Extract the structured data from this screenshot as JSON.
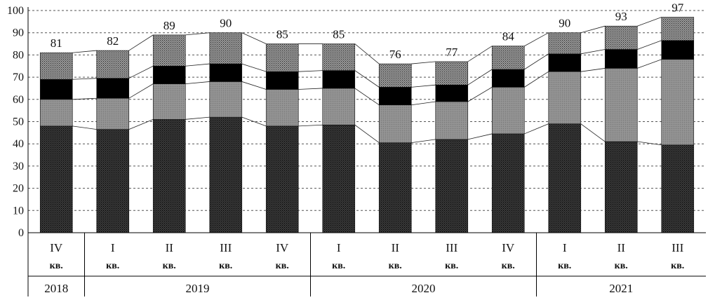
{
  "chart_data": {
    "type": "bar",
    "stacked": true,
    "title": "",
    "xlabel": "",
    "ylabel": "",
    "ylim": [
      0,
      100
    ],
    "yticks": [
      0,
      10,
      20,
      30,
      40,
      50,
      60,
      70,
      80,
      90,
      100
    ],
    "grid": "horizontal dashed",
    "legend": "none",
    "categories": [
      {
        "quarter": "IV",
        "unit": "кв."
      },
      {
        "quarter": "I",
        "unit": "кв."
      },
      {
        "quarter": "II",
        "unit": "кв."
      },
      {
        "quarter": "III",
        "unit": "кв."
      },
      {
        "quarter": "IV",
        "unit": "кв."
      },
      {
        "quarter": "I",
        "unit": "кв."
      },
      {
        "quarter": "II",
        "unit": "кв."
      },
      {
        "quarter": "III",
        "unit": "кв."
      },
      {
        "quarter": "IV",
        "unit": "кв."
      },
      {
        "quarter": "I",
        "unit": "кв."
      },
      {
        "quarter": "II",
        "unit": "кв."
      },
      {
        "quarter": "III",
        "unit": "кв."
      }
    ],
    "year_groups": [
      {
        "label": "2018",
        "span": 1
      },
      {
        "label": "2019",
        "span": 4
      },
      {
        "label": "2020",
        "span": 4
      },
      {
        "label": "2021",
        "span": 3
      }
    ],
    "series": [
      {
        "fill": "#222222",
        "pattern": "dark-dots",
        "values": [
          48,
          46.5,
          51,
          52,
          48,
          48.5,
          40.5,
          42,
          44.5,
          49,
          41,
          39.5
        ]
      },
      {
        "fill": "#8c8c8c",
        "pattern": "grey",
        "values": [
          12,
          14,
          16,
          16,
          16.5,
          16.5,
          17,
          17,
          21,
          23.5,
          33,
          38.5
        ]
      },
      {
        "fill": "#000000",
        "pattern": "black",
        "values": [
          9,
          9,
          8,
          8,
          8,
          8,
          8,
          7.5,
          8,
          8,
          8.5,
          8.5
        ]
      },
      {
        "fill": "#5a5a5a",
        "pattern": "light-dots",
        "values": [
          12,
          12.5,
          14,
          14,
          12.5,
          12,
          10.5,
          10.5,
          10.5,
          9.5,
          10.5,
          10.5
        ]
      }
    ],
    "totals": [
      81,
      82,
      89,
      90,
      85,
      85,
      76,
      77,
      84,
      90,
      93,
      97
    ]
  }
}
